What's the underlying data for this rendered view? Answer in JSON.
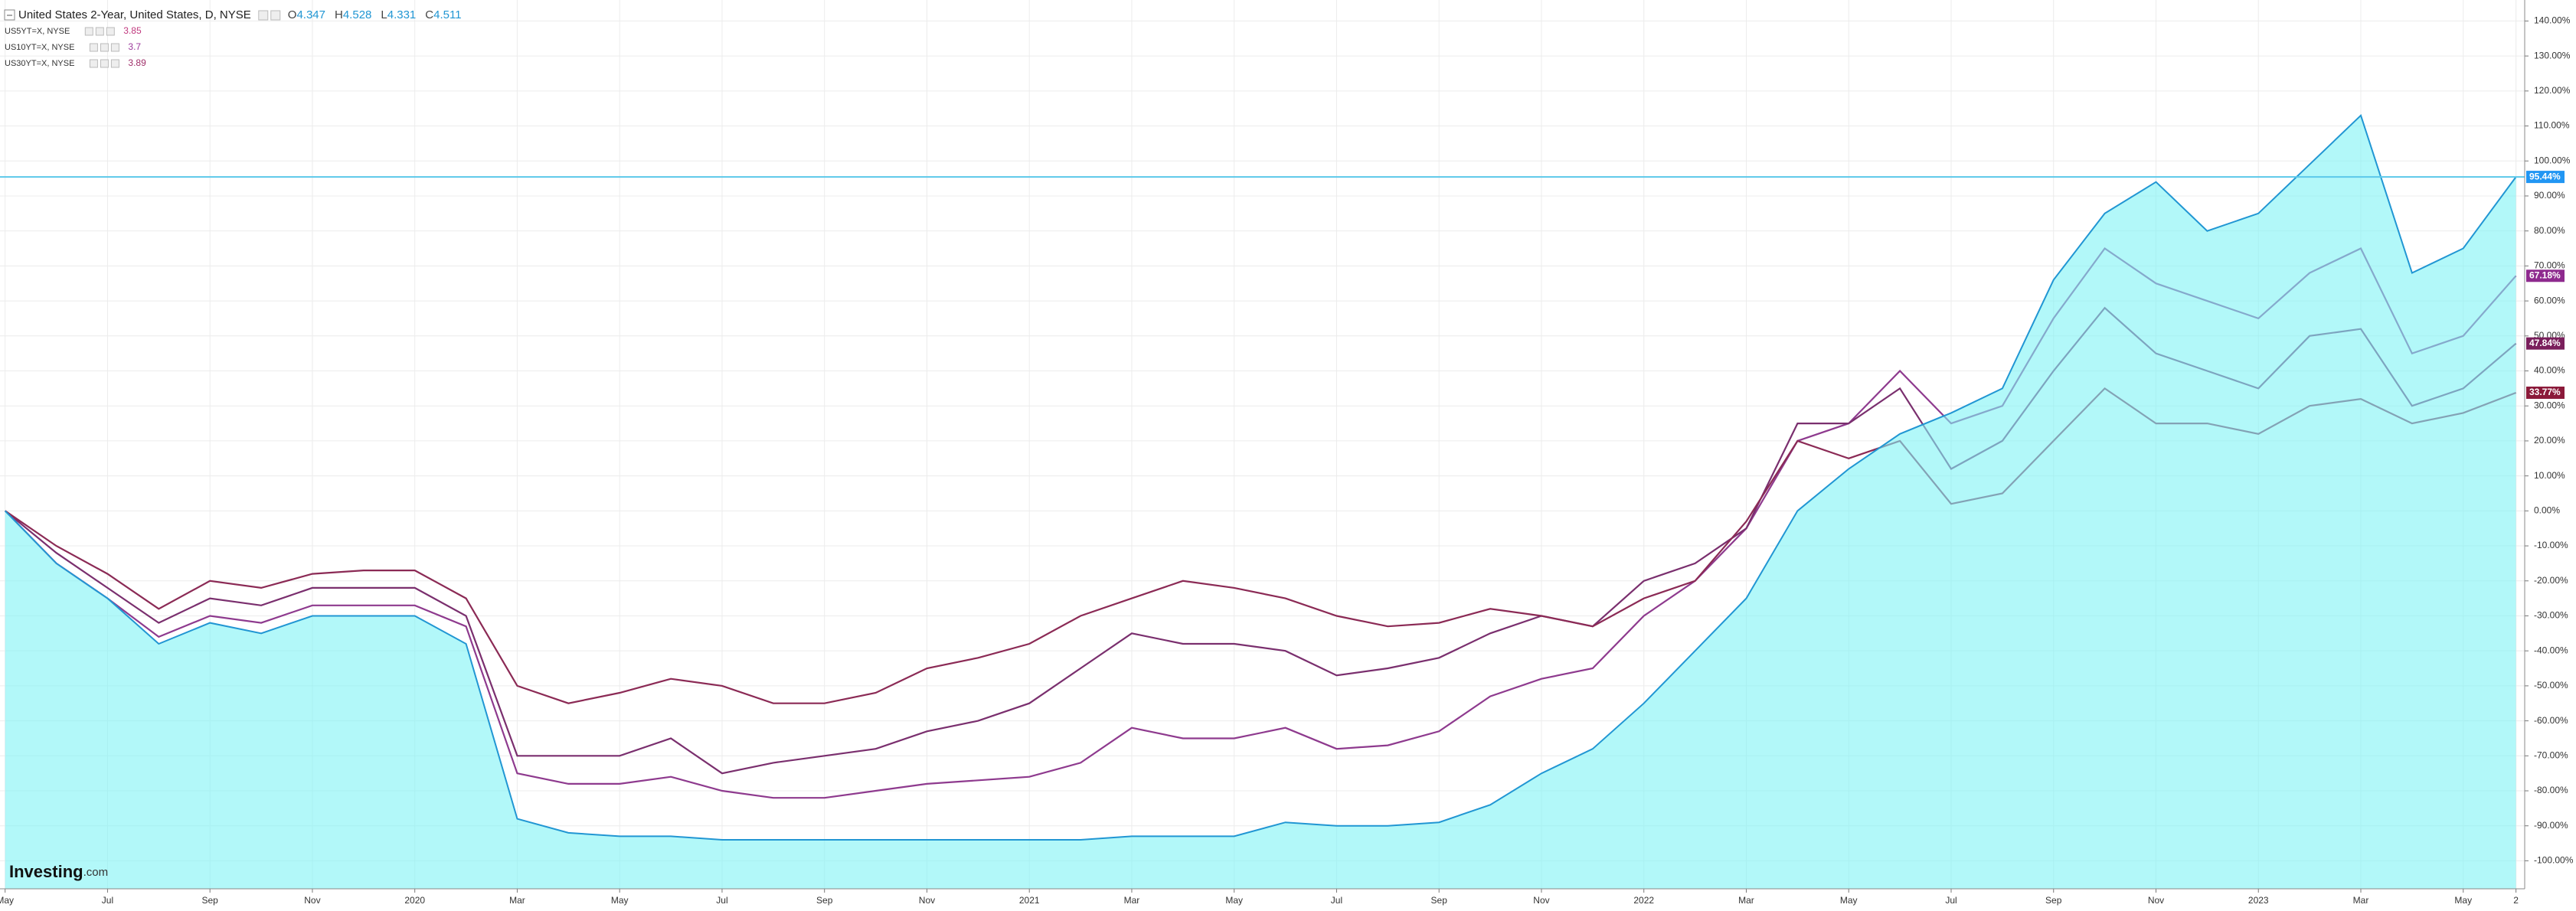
{
  "chart_data": {
    "type": "line",
    "watermark": [
      "Investing",
      ".com"
    ],
    "x": [
      0,
      1,
      2,
      3,
      4,
      5,
      6,
      7,
      8,
      9,
      10,
      11,
      12,
      13,
      14,
      15,
      16,
      17,
      18,
      19,
      20,
      21,
      22,
      23,
      24,
      25,
      26,
      27,
      28,
      29,
      30,
      31,
      32,
      33,
      34,
      35,
      36,
      37,
      38,
      39,
      40,
      41,
      42,
      43,
      44,
      45,
      46,
      47,
      48,
      49.03
    ],
    "xlim": [
      -0.1,
      49.2
    ],
    "xticks": [
      {
        "value": 0,
        "label": "May"
      },
      {
        "value": 2,
        "label": "Jul"
      },
      {
        "value": 4,
        "label": "Sep"
      },
      {
        "value": 6,
        "label": "Nov"
      },
      {
        "value": 8,
        "label": "2020"
      },
      {
        "value": 10,
        "label": "Mar"
      },
      {
        "value": 12,
        "label": "May"
      },
      {
        "value": 14,
        "label": "Jul"
      },
      {
        "value": 16,
        "label": "Sep"
      },
      {
        "value": 18,
        "label": "Nov"
      },
      {
        "value": 20,
        "label": "2021"
      },
      {
        "value": 22,
        "label": "Mar"
      },
      {
        "value": 24,
        "label": "May"
      },
      {
        "value": 26,
        "label": "Jul"
      },
      {
        "value": 28,
        "label": "Sep"
      },
      {
        "value": 30,
        "label": "Nov"
      },
      {
        "value": 32,
        "label": "2022"
      },
      {
        "value": 34,
        "label": "Mar"
      },
      {
        "value": 36,
        "label": "May"
      },
      {
        "value": 38,
        "label": "Jul"
      },
      {
        "value": 40,
        "label": "Sep"
      },
      {
        "value": 42,
        "label": "Nov"
      },
      {
        "value": 44,
        "label": "2023"
      },
      {
        "value": 46,
        "label": "Mar"
      },
      {
        "value": 48,
        "label": "May"
      },
      {
        "value": 49.03,
        "label": "2"
      }
    ],
    "ylim": [
      -108,
      146
    ],
    "yticks": [
      {
        "value": -100,
        "label": "-100.00%"
      },
      {
        "value": -90,
        "label": "-90.00%"
      },
      {
        "value": -80,
        "label": "-80.00%"
      },
      {
        "value": -70,
        "label": "-70.00%"
      },
      {
        "value": -60,
        "label": "-60.00%"
      },
      {
        "value": -50,
        "label": "-50.00%"
      },
      {
        "value": -40,
        "label": "-40.00%"
      },
      {
        "value": -30,
        "label": "-30.00%"
      },
      {
        "value": -20,
        "label": "-20.00%"
      },
      {
        "value": -10,
        "label": "-10.00%"
      },
      {
        "value": 0,
        "label": "0.00%"
      },
      {
        "value": 10,
        "label": "10.00%"
      },
      {
        "value": 20,
        "label": "20.00%"
      },
      {
        "value": 30,
        "label": "30.00%"
      },
      {
        "value": 40,
        "label": "40.00%"
      },
      {
        "value": 50,
        "label": "50.00%"
      },
      {
        "value": 60,
        "label": "60.00%"
      },
      {
        "value": 70,
        "label": "70.00%"
      },
      {
        "value": 80,
        "label": "80.00%"
      },
      {
        "value": 90,
        "label": "90.00%"
      },
      {
        "value": 100,
        "label": "100.00%"
      },
      {
        "value": 110,
        "label": "110.00%"
      },
      {
        "value": 120,
        "label": "120.00%"
      },
      {
        "value": 130,
        "label": "130.00%"
      },
      {
        "value": 140,
        "label": "140.00%"
      }
    ],
    "grid": true,
    "series": [
      {
        "name": "United States 2-Year, United States, D, NYSE",
        "style": "area",
        "color": "#2196d3",
        "fill": "#7ff3f5",
        "ohlc": [
          {
            "key": "O",
            "value": 4.347
          },
          {
            "key": "H",
            "value": 4.528
          },
          {
            "key": "L",
            "value": 4.331
          },
          {
            "key": "C",
            "value": 4.511
          }
        ],
        "last_label": "95.44%",
        "label_color": "#2196f3",
        "values": [
          0,
          -15,
          -25,
          -38,
          -32,
          -35,
          -30,
          -30,
          -30,
          -38,
          -88,
          -92,
          -93,
          -93,
          -94,
          -94,
          -94,
          -94,
          -94,
          -94,
          -94,
          -94,
          -93,
          -93,
          -93,
          -89,
          -90,
          -90,
          -89,
          -84,
          -75,
          -68,
          -55,
          -40,
          -25,
          0,
          12,
          22,
          28,
          35,
          66,
          85,
          94,
          80,
          85,
          99,
          113,
          68,
          75,
          95.44
        ]
      },
      {
        "name": "US5YT=X, NYSE",
        "style": "line",
        "color": "#8e3a8e",
        "price": 3.85,
        "price_color": "#c0387e",
        "last_label": "67.18%",
        "label_color": "#8e2a8e",
        "values": [
          0,
          -15,
          -25,
          -36,
          -30,
          -32,
          -27,
          -27,
          -27,
          -33,
          -75,
          -78,
          -78,
          -76,
          -80,
          -82,
          -82,
          -80,
          -78,
          -77,
          -76,
          -72,
          -62,
          -65,
          -65,
          -62,
          -68,
          -67,
          -63,
          -53,
          -48,
          -45,
          -30,
          -20,
          -5,
          20,
          25,
          40,
          25,
          30,
          55,
          75,
          65,
          60,
          55,
          68,
          75,
          45,
          50,
          67.18
        ]
      },
      {
        "name": "US10YT=X, NYSE",
        "style": "line",
        "color": "#7a2f6e",
        "price": 3.7,
        "price_color": "#9c3a9c",
        "last_label": "47.84%",
        "label_color": "#7a1f5c",
        "values": [
          0,
          -12,
          -22,
          -32,
          -25,
          -27,
          -22,
          -22,
          -22,
          -30,
          -70,
          -70,
          -70,
          -65,
          -75,
          -72,
          -70,
          -68,
          -63,
          -60,
          -55,
          -45,
          -35,
          -38,
          -38,
          -40,
          -47,
          -45,
          -42,
          -35,
          -30,
          -33,
          -20,
          -15,
          -5,
          25,
          25,
          35,
          12,
          20,
          40,
          58,
          45,
          40,
          35,
          50,
          52,
          30,
          35,
          47.84
        ]
      },
      {
        "name": "US30YT=X, NYSE",
        "style": "line",
        "color": "#8b2a55",
        "price": 3.89,
        "price_color": "#a0306a",
        "last_label": "33.77%",
        "label_color": "#8b1a3a",
        "values": [
          0,
          -10,
          -18,
          -28,
          -20,
          -22,
          -18,
          -17,
          -17,
          -25,
          -50,
          -55,
          -52,
          -48,
          -50,
          -55,
          -55,
          -52,
          -45,
          -42,
          -38,
          -30,
          -25,
          -20,
          -22,
          -25,
          -30,
          -33,
          -32,
          -28,
          -30,
          -33,
          -25,
          -20,
          -3,
          20,
          15,
          20,
          2,
          5,
          20,
          35,
          25,
          25,
          22,
          30,
          32,
          25,
          28,
          33.77
        ]
      }
    ]
  }
}
